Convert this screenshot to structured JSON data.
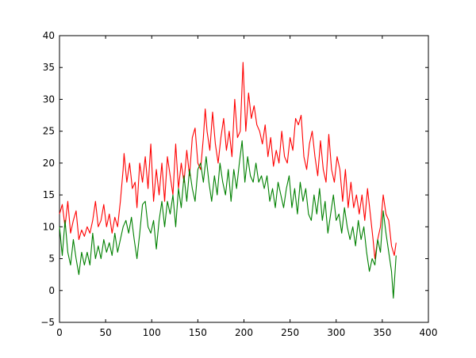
{
  "chart_data": {
    "type": "line",
    "title": "",
    "xlabel": "",
    "ylabel": "",
    "xlim": [
      0,
      400
    ],
    "ylim": [
      -5,
      40
    ],
    "xticks": [
      0,
      50,
      100,
      150,
      200,
      250,
      300,
      350,
      400
    ],
    "yticks": [
      -5,
      0,
      5,
      10,
      15,
      20,
      25,
      30,
      35,
      40
    ],
    "grid": false,
    "legend": "none",
    "series": [
      {
        "color": "#ff0000",
        "points": [
          [
            0,
            12
          ],
          [
            3,
            13.5
          ],
          [
            6,
            10
          ],
          [
            9,
            14
          ],
          [
            12,
            9
          ],
          [
            15,
            11
          ],
          [
            18,
            12.5
          ],
          [
            21,
            8
          ],
          [
            24,
            9.5
          ],
          [
            27,
            8.5
          ],
          [
            30,
            10
          ],
          [
            33,
            9
          ],
          [
            36,
            11
          ],
          [
            39,
            14
          ],
          [
            42,
            10
          ],
          [
            45,
            11
          ],
          [
            48,
            13.5
          ],
          [
            51,
            10
          ],
          [
            54,
            12
          ],
          [
            57,
            9
          ],
          [
            60,
            11.5
          ],
          [
            63,
            10
          ],
          [
            66,
            14
          ],
          [
            69,
            19
          ],
          [
            70,
            21.5
          ],
          [
            73,
            17
          ],
          [
            76,
            20
          ],
          [
            79,
            16
          ],
          [
            82,
            17
          ],
          [
            84,
            13
          ],
          [
            87,
            20
          ],
          [
            90,
            17
          ],
          [
            93,
            21
          ],
          [
            96,
            16
          ],
          [
            99,
            23
          ],
          [
            102,
            14
          ],
          [
            105,
            19
          ],
          [
            108,
            15
          ],
          [
            111,
            20
          ],
          [
            114,
            14
          ],
          [
            117,
            21
          ],
          [
            120,
            18
          ],
          [
            123,
            15
          ],
          [
            126,
            23
          ],
          [
            129,
            16
          ],
          [
            132,
            20
          ],
          [
            135,
            17
          ],
          [
            138,
            22
          ],
          [
            141,
            18
          ],
          [
            144,
            24
          ],
          [
            147,
            25.5
          ],
          [
            150,
            20
          ],
          [
            153,
            19
          ],
          [
            156,
            24
          ],
          [
            158,
            28.5
          ],
          [
            160,
            25
          ],
          [
            163,
            22
          ],
          [
            166,
            28
          ],
          [
            169,
            23
          ],
          [
            172,
            20
          ],
          [
            175,
            24
          ],
          [
            178,
            27
          ],
          [
            181,
            22
          ],
          [
            184,
            25
          ],
          [
            187,
            21
          ],
          [
            190,
            30
          ],
          [
            193,
            24
          ],
          [
            196,
            25
          ],
          [
            199,
            35.8
          ],
          [
            202,
            25
          ],
          [
            205,
            31
          ],
          [
            208,
            27
          ],
          [
            211,
            29
          ],
          [
            214,
            26
          ],
          [
            217,
            25
          ],
          [
            220,
            23
          ],
          [
            223,
            26
          ],
          [
            226,
            21
          ],
          [
            229,
            24
          ],
          [
            232,
            19.5
          ],
          [
            235,
            22
          ],
          [
            238,
            20
          ],
          [
            241,
            25
          ],
          [
            244,
            21
          ],
          [
            247,
            20
          ],
          [
            250,
            24
          ],
          [
            253,
            22
          ],
          [
            256,
            27
          ],
          [
            259,
            26
          ],
          [
            262,
            27.5
          ],
          [
            265,
            21
          ],
          [
            268,
            19
          ],
          [
            271,
            23
          ],
          [
            274,
            25
          ],
          [
            277,
            21
          ],
          [
            280,
            18
          ],
          [
            283,
            23.5
          ],
          [
            286,
            19
          ],
          [
            289,
            17
          ],
          [
            292,
            24.5
          ],
          [
            295,
            19
          ],
          [
            298,
            17
          ],
          [
            301,
            21
          ],
          [
            304,
            19
          ],
          [
            307,
            14
          ],
          [
            310,
            19
          ],
          [
            313,
            13
          ],
          [
            316,
            17
          ],
          [
            319,
            13
          ],
          [
            322,
            15
          ],
          [
            325,
            12
          ],
          [
            328,
            15
          ],
          [
            331,
            11
          ],
          [
            334,
            16
          ],
          [
            337,
            12
          ],
          [
            340,
            8
          ],
          [
            342,
            5
          ],
          [
            345,
            8
          ],
          [
            348,
            10
          ],
          [
            351,
            15
          ],
          [
            354,
            12
          ],
          [
            357,
            11
          ],
          [
            360,
            7
          ],
          [
            363,
            5.5
          ],
          [
            365,
            7.5
          ]
        ]
      },
      {
        "color": "#008000",
        "points": [
          [
            0,
            10
          ],
          [
            3,
            5.5
          ],
          [
            6,
            11
          ],
          [
            9,
            6
          ],
          [
            12,
            4
          ],
          [
            15,
            8
          ],
          [
            18,
            5
          ],
          [
            21,
            2.5
          ],
          [
            24,
            6
          ],
          [
            27,
            4
          ],
          [
            30,
            6
          ],
          [
            33,
            4
          ],
          [
            36,
            9
          ],
          [
            39,
            5
          ],
          [
            42,
            7
          ],
          [
            45,
            5
          ],
          [
            48,
            8
          ],
          [
            51,
            6
          ],
          [
            54,
            7.5
          ],
          [
            57,
            5.5
          ],
          [
            60,
            9
          ],
          [
            63,
            6
          ],
          [
            66,
            8
          ],
          [
            69,
            10
          ],
          [
            72,
            11
          ],
          [
            75,
            9
          ],
          [
            78,
            11.5
          ],
          [
            81,
            8
          ],
          [
            84,
            5
          ],
          [
            87,
            9
          ],
          [
            90,
            13.5
          ],
          [
            93,
            14
          ],
          [
            96,
            10
          ],
          [
            99,
            9
          ],
          [
            102,
            11
          ],
          [
            105,
            6.5
          ],
          [
            108,
            11
          ],
          [
            111,
            14
          ],
          [
            114,
            10
          ],
          [
            117,
            14
          ],
          [
            120,
            12
          ],
          [
            123,
            15
          ],
          [
            126,
            10
          ],
          [
            129,
            16
          ],
          [
            132,
            13
          ],
          [
            135,
            18
          ],
          [
            138,
            14
          ],
          [
            141,
            19
          ],
          [
            144,
            16
          ],
          [
            147,
            14
          ],
          [
            150,
            19
          ],
          [
            153,
            20
          ],
          [
            156,
            17
          ],
          [
            159,
            21
          ],
          [
            162,
            17
          ],
          [
            165,
            14
          ],
          [
            168,
            18
          ],
          [
            171,
            15
          ],
          [
            174,
            20
          ],
          [
            177,
            17
          ],
          [
            180,
            15
          ],
          [
            183,
            19
          ],
          [
            186,
            14
          ],
          [
            189,
            19
          ],
          [
            192,
            16
          ],
          [
            195,
            20
          ],
          [
            198,
            23.5
          ],
          [
            201,
            17
          ],
          [
            204,
            21
          ],
          [
            207,
            18
          ],
          [
            210,
            17
          ],
          [
            213,
            20
          ],
          [
            216,
            17
          ],
          [
            219,
            18
          ],
          [
            222,
            16
          ],
          [
            225,
            18
          ],
          [
            228,
            14
          ],
          [
            231,
            16
          ],
          [
            234,
            13
          ],
          [
            237,
            17
          ],
          [
            240,
            15
          ],
          [
            243,
            13
          ],
          [
            246,
            16
          ],
          [
            249,
            18
          ],
          [
            252,
            13
          ],
          [
            255,
            16
          ],
          [
            258,
            12
          ],
          [
            261,
            17
          ],
          [
            264,
            14
          ],
          [
            267,
            16
          ],
          [
            270,
            12
          ],
          [
            273,
            11
          ],
          [
            276,
            15
          ],
          [
            279,
            12
          ],
          [
            282,
            16
          ],
          [
            285,
            11
          ],
          [
            288,
            14
          ],
          [
            291,
            9
          ],
          [
            294,
            12
          ],
          [
            297,
            15
          ],
          [
            300,
            11
          ],
          [
            303,
            12
          ],
          [
            306,
            9
          ],
          [
            309,
            13
          ],
          [
            312,
            10
          ],
          [
            315,
            8
          ],
          [
            318,
            10
          ],
          [
            321,
            7
          ],
          [
            324,
            11
          ],
          [
            327,
            8
          ],
          [
            330,
            10
          ],
          [
            333,
            6
          ],
          [
            336,
            3
          ],
          [
            339,
            5
          ],
          [
            342,
            4
          ],
          [
            345,
            8
          ],
          [
            348,
            6
          ],
          [
            351,
            12.5
          ],
          [
            354,
            9
          ],
          [
            357,
            6
          ],
          [
            360,
            3
          ],
          [
            362,
            -1.2
          ],
          [
            365,
            5.5
          ]
        ]
      }
    ]
  }
}
